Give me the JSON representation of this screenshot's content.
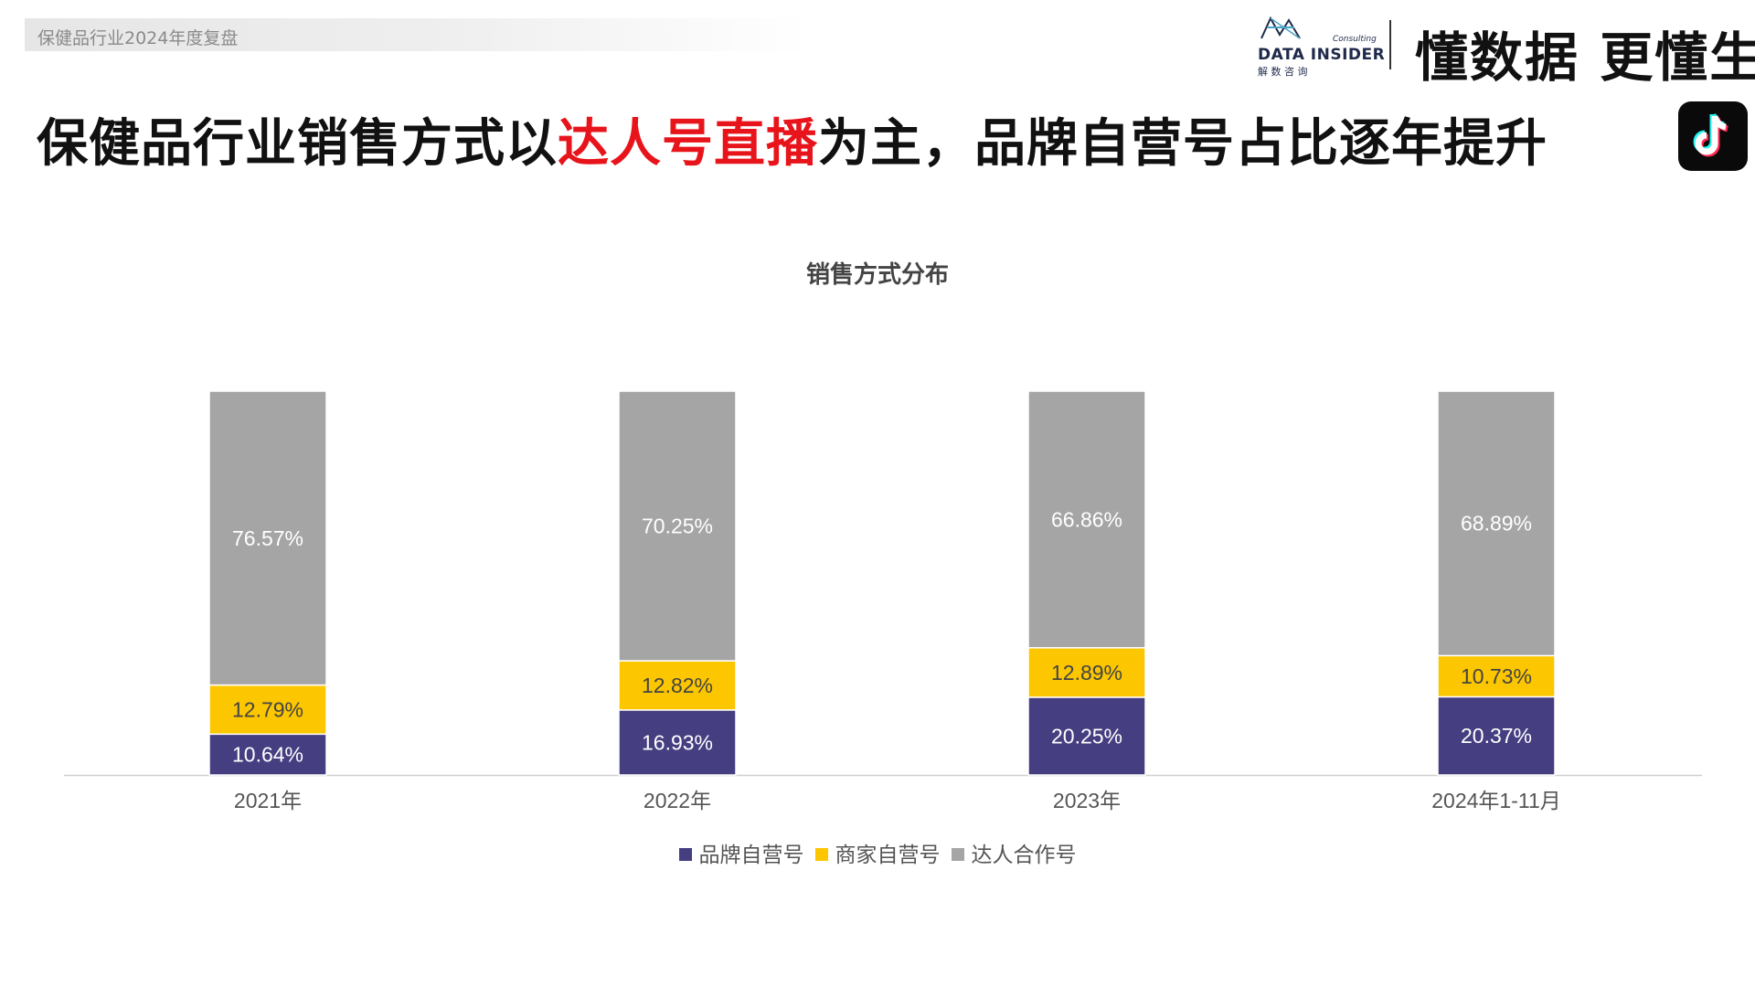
{
  "header": {
    "breadcrumb": "保健品行业2024年度复盘",
    "logo_en": "DATA INSIDER",
    "logo_consult": "Consulting",
    "logo_cn": "解 数 咨 询",
    "slogan": "懂数据 更懂生意",
    "app_icon": "tiktok-icon"
  },
  "headline": {
    "part1": "保健品行业销售方式以",
    "highlight": "达人号直播",
    "part2": "为主，品牌自营号占比逐年提升",
    "highlight_color": "#e8141b"
  },
  "chart_data": {
    "type": "bar",
    "stacked": true,
    "title": "销售方式分布",
    "categories": [
      "2021年",
      "2022年",
      "2023年",
      "2024年1-11月"
    ],
    "series": [
      {
        "name": "品牌自营号",
        "color": "#453e80",
        "values": [
          10.64,
          16.93,
          20.25,
          20.37
        ],
        "labels": [
          "10.64%",
          "16.93%",
          "20.25%",
          "20.37%"
        ]
      },
      {
        "name": "商家自营号",
        "color": "#fcc600",
        "values": [
          12.79,
          12.82,
          12.89,
          10.73
        ],
        "labels": [
          "12.79%",
          "12.82%",
          "12.89%",
          "10.73%"
        ]
      },
      {
        "name": "达人合作号",
        "color": "#a5a5a5",
        "values": [
          76.57,
          70.25,
          66.86,
          68.89
        ],
        "labels": [
          "76.57%",
          "70.25%",
          "66.86%",
          "68.89%"
        ]
      }
    ],
    "ylim": [
      0,
      100
    ],
    "legend_position": "bottom",
    "grid": false
  }
}
